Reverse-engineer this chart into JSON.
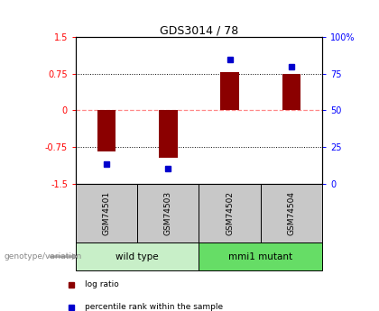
{
  "title": "GDS3014 / 78",
  "samples": [
    "GSM74501",
    "GSM74503",
    "GSM74502",
    "GSM74504"
  ],
  "log_ratios": [
    -0.85,
    -0.97,
    0.78,
    0.75
  ],
  "percentile_ranks": [
    13,
    10,
    85,
    80
  ],
  "ylim_left": [
    -1.5,
    1.5
  ],
  "yticks_left": [
    -1.5,
    -0.75,
    0,
    0.75,
    1.5
  ],
  "yticklabels_left": [
    "-1.5",
    "-0.75",
    "0",
    "0.75",
    "1.5"
  ],
  "yticks_right": [
    0.0,
    0.25,
    0.5,
    0.75,
    1.0
  ],
  "yticklabels_right": [
    "0",
    "25",
    "50",
    "75",
    "100%"
  ],
  "bar_color": "#8b0000",
  "dot_color": "#0000cd",
  "bar_width": 0.3,
  "hline_dotted": [
    -0.75,
    0.75
  ],
  "hline_dashed": [
    0.0
  ],
  "zero_line_color": "#ff8888",
  "dot_line_color": "#555555",
  "sample_box_color": "#c8c8c8",
  "group_wild_color": "#c8efc8",
  "group_mutant_color": "#66dd66",
  "genotype_label": "genotype/variation",
  "group_labels": [
    "wild type",
    "mmi1 mutant"
  ],
  "group_ranges": [
    [
      0,
      1
    ],
    [
      2,
      3
    ]
  ],
  "legend_items": [
    {
      "label": "log ratio",
      "color": "#8b0000"
    },
    {
      "label": "percentile rank within the sample",
      "color": "#0000cd"
    }
  ]
}
